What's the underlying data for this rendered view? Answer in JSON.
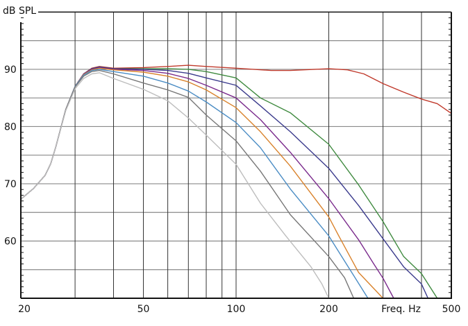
{
  "chart_data": {
    "type": "line",
    "title": "",
    "ylabel": "dB SPL",
    "xlabel": "Freq. Hz",
    "xscale": "log",
    "xlim": [
      20,
      500
    ],
    "ylim": [
      50,
      100
    ],
    "grid": true,
    "x_gridlines": [
      30,
      40,
      50,
      60,
      70,
      80,
      90,
      100,
      200,
      300,
      400
    ],
    "y_gridlines": [
      55,
      60,
      65,
      70,
      75,
      80,
      85,
      90,
      95
    ],
    "x_tick_labels": [
      {
        "value": 20,
        "label": "20"
      },
      {
        "value": 50,
        "label": "50"
      },
      {
        "value": 100,
        "label": "100"
      },
      {
        "value": 200,
        "label": "200"
      },
      {
        "value": 500,
        "label": "500"
      }
    ],
    "y_tick_labels": [
      {
        "value": 90,
        "label": "90"
      },
      {
        "value": 80,
        "label": "80"
      },
      {
        "value": 70,
        "label": "70"
      },
      {
        "value": 60,
        "label": "60"
      }
    ],
    "xlabel_position_value": 300,
    "series": [
      {
        "name": "red",
        "color": "#c0392b",
        "points": [
          [
            20,
            67.3
          ],
          [
            22,
            69.2
          ],
          [
            24,
            71.5
          ],
          [
            25,
            73.5
          ],
          [
            26,
            76.5
          ],
          [
            28,
            83
          ],
          [
            30,
            87
          ],
          [
            32,
            89.2
          ],
          [
            34,
            90.2
          ],
          [
            36,
            90.5
          ],
          [
            40,
            90.2
          ],
          [
            50,
            90.3
          ],
          [
            60,
            90.5
          ],
          [
            70,
            90.7
          ],
          [
            80,
            90.5
          ],
          [
            100,
            90.2
          ],
          [
            130,
            89.8
          ],
          [
            150,
            89.8
          ],
          [
            200,
            90.1
          ],
          [
            230,
            89.9
          ],
          [
            260,
            89.2
          ],
          [
            300,
            87.5
          ],
          [
            350,
            86
          ],
          [
            400,
            84.8
          ],
          [
            450,
            84
          ],
          [
            500,
            82.3
          ]
        ]
      },
      {
        "name": "green",
        "color": "#3f8a3f",
        "points": [
          [
            20,
            67.3
          ],
          [
            22,
            69.2
          ],
          [
            24,
            71.5
          ],
          [
            25,
            73.5
          ],
          [
            26,
            76.5
          ],
          [
            28,
            83
          ],
          [
            30,
            87
          ],
          [
            32,
            89.2
          ],
          [
            34,
            90.1
          ],
          [
            36,
            90.4
          ],
          [
            40,
            90.1
          ],
          [
            50,
            90.1
          ],
          [
            60,
            90.1
          ],
          [
            70,
            90
          ],
          [
            80,
            89.6
          ],
          [
            100,
            88.5
          ],
          [
            120,
            85
          ],
          [
            150,
            82.4
          ],
          [
            200,
            76.9
          ],
          [
            250,
            69.8
          ],
          [
            300,
            63.4
          ],
          [
            350,
            57.3
          ],
          [
            400,
            54.3
          ],
          [
            450,
            50
          ]
        ]
      },
      {
        "name": "navy",
        "color": "#3a3a8c",
        "points": [
          [
            20,
            67.3
          ],
          [
            22,
            69.2
          ],
          [
            24,
            71.5
          ],
          [
            25,
            73.5
          ],
          [
            26,
            76.5
          ],
          [
            28,
            83
          ],
          [
            30,
            87
          ],
          [
            32,
            89.2
          ],
          [
            34,
            90.1
          ],
          [
            36,
            90.4
          ],
          [
            40,
            90.1
          ],
          [
            50,
            90
          ],
          [
            60,
            89.8
          ],
          [
            70,
            89.3
          ],
          [
            80,
            88.5
          ],
          [
            100,
            87.2
          ],
          [
            120,
            83.6
          ],
          [
            150,
            79.1
          ],
          [
            200,
            72.7
          ],
          [
            250,
            66.2
          ],
          [
            300,
            60.4
          ],
          [
            350,
            55.5
          ],
          [
            400,
            52.5
          ],
          [
            420,
            50
          ]
        ]
      },
      {
        "name": "purple",
        "color": "#7a2a8c",
        "points": [
          [
            20,
            67.3
          ],
          [
            22,
            69.2
          ],
          [
            24,
            71.5
          ],
          [
            25,
            73.5
          ],
          [
            26,
            76.5
          ],
          [
            28,
            83
          ],
          [
            30,
            87
          ],
          [
            32,
            89.2
          ],
          [
            34,
            90
          ],
          [
            36,
            90.3
          ],
          [
            40,
            90
          ],
          [
            50,
            89.8
          ],
          [
            60,
            89.3
          ],
          [
            70,
            88.4
          ],
          [
            80,
            87.2
          ],
          [
            100,
            85
          ],
          [
            120,
            81.2
          ],
          [
            150,
            75.5
          ],
          [
            200,
            67.4
          ],
          [
            250,
            60.2
          ],
          [
            280,
            56
          ],
          [
            300,
            53.5
          ],
          [
            325,
            50
          ]
        ]
      },
      {
        "name": "orange",
        "color": "#d9822b",
        "points": [
          [
            20,
            67.3
          ],
          [
            22,
            69.2
          ],
          [
            24,
            71.5
          ],
          [
            25,
            73.5
          ],
          [
            26,
            76.5
          ],
          [
            28,
            83
          ],
          [
            30,
            87
          ],
          [
            32,
            89.1
          ],
          [
            34,
            89.9
          ],
          [
            36,
            90.2
          ],
          [
            40,
            89.9
          ],
          [
            50,
            89.5
          ],
          [
            60,
            88.8
          ],
          [
            70,
            87.8
          ],
          [
            80,
            86.4
          ],
          [
            100,
            83.3
          ],
          [
            120,
            79.1
          ],
          [
            150,
            73.1
          ],
          [
            200,
            64.2
          ],
          [
            215,
            61
          ],
          [
            250,
            54.5
          ],
          [
            300,
            50
          ]
        ]
      },
      {
        "name": "blue",
        "color": "#4a8cc4",
        "points": [
          [
            20,
            67.3
          ],
          [
            22,
            69.2
          ],
          [
            24,
            71.5
          ],
          [
            25,
            73.5
          ],
          [
            26,
            76.5
          ],
          [
            28,
            83
          ],
          [
            30,
            87
          ],
          [
            32,
            89
          ],
          [
            34,
            89.8
          ],
          [
            36,
            90
          ],
          [
            40,
            89.6
          ],
          [
            50,
            88.8
          ],
          [
            60,
            87.6
          ],
          [
            70,
            86.2
          ],
          [
            80,
            84.3
          ],
          [
            100,
            80.7
          ],
          [
            120,
            76.3
          ],
          [
            150,
            69.1
          ],
          [
            200,
            60.9
          ],
          [
            230,
            55.7
          ],
          [
            268,
            50
          ]
        ]
      },
      {
        "name": "gray",
        "color": "#777777",
        "points": [
          [
            20,
            67.3
          ],
          [
            22,
            69.2
          ],
          [
            24,
            71.5
          ],
          [
            25,
            73.5
          ],
          [
            26,
            76.5
          ],
          [
            28,
            83
          ],
          [
            30,
            86.9
          ],
          [
            32,
            88.8
          ],
          [
            34,
            89.6
          ],
          [
            36,
            89.8
          ],
          [
            40,
            89.2
          ],
          [
            50,
            87.6
          ],
          [
            60,
            86.4
          ],
          [
            70,
            85.1
          ],
          [
            80,
            82
          ],
          [
            100,
            77.5
          ],
          [
            120,
            72.2
          ],
          [
            150,
            64.6
          ],
          [
            200,
            57.3
          ],
          [
            225,
            53.6
          ],
          [
            241,
            50
          ]
        ]
      },
      {
        "name": "light-gray",
        "color": "#bdbdbd",
        "points": [
          [
            20,
            67.3
          ],
          [
            22,
            69.2
          ],
          [
            24,
            71.5
          ],
          [
            25,
            73.5
          ],
          [
            26,
            76.5
          ],
          [
            28,
            82.8
          ],
          [
            30,
            86.6
          ],
          [
            32,
            88.4
          ],
          [
            34,
            89.2
          ],
          [
            36,
            89.4
          ],
          [
            40,
            88.4
          ],
          [
            50,
            86.5
          ],
          [
            60,
            84.5
          ],
          [
            70,
            81.5
          ],
          [
            80,
            78.5
          ],
          [
            100,
            73.4
          ],
          [
            120,
            66.6
          ],
          [
            145,
            60.9
          ],
          [
            175,
            55.5
          ],
          [
            190,
            52.5
          ],
          [
            200,
            50
          ]
        ]
      }
    ]
  }
}
